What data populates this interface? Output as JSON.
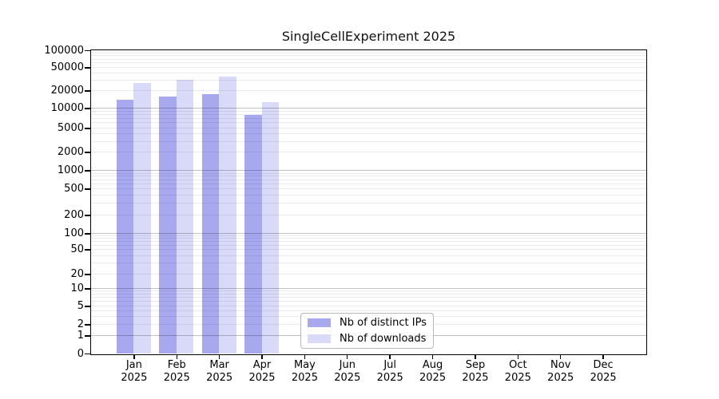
{
  "title": "SingleCellExperiment 2025",
  "chart_data": {
    "type": "bar",
    "title": "SingleCellExperiment 2025",
    "categories": [
      "Jan 2025",
      "Feb 2025",
      "Mar 2025",
      "Apr 2025",
      "May 2025",
      "Jun 2025",
      "Jul 2025",
      "Aug 2025",
      "Sep 2025",
      "Oct 2025",
      "Nov 2025",
      "Dec 2025"
    ],
    "series": [
      {
        "name": "Nb of distinct IPs",
        "color": "#a8a8ef",
        "values": [
          14000,
          16000,
          17500,
          8000,
          null,
          null,
          null,
          null,
          null,
          null,
          null,
          null
        ]
      },
      {
        "name": "Nb of downloads",
        "color": "#d9d9f8",
        "values": [
          27000,
          30500,
          34500,
          12800,
          null,
          null,
          null,
          null,
          null,
          null,
          null,
          null
        ]
      }
    ],
    "yscale": "log-with-zero",
    "ylim": [
      0,
      100000
    ],
    "yticks": [
      0,
      1,
      2,
      5,
      10,
      20,
      50,
      100,
      200,
      500,
      1000,
      2000,
      5000,
      10000,
      20000,
      50000,
      100000
    ],
    "grid": "on",
    "legend_position": "lower center"
  },
  "x_axis": {
    "months": [
      "Jan",
      "Feb",
      "Mar",
      "Apr",
      "May",
      "Jun",
      "Jul",
      "Aug",
      "Sep",
      "Oct",
      "Nov",
      "Dec"
    ],
    "year": "2025"
  },
  "colors": {
    "grid_major": "rgba(0,0,0,0.24)",
    "grid_minor": "rgba(0,0,0,0.08)",
    "axis": "#000000"
  }
}
